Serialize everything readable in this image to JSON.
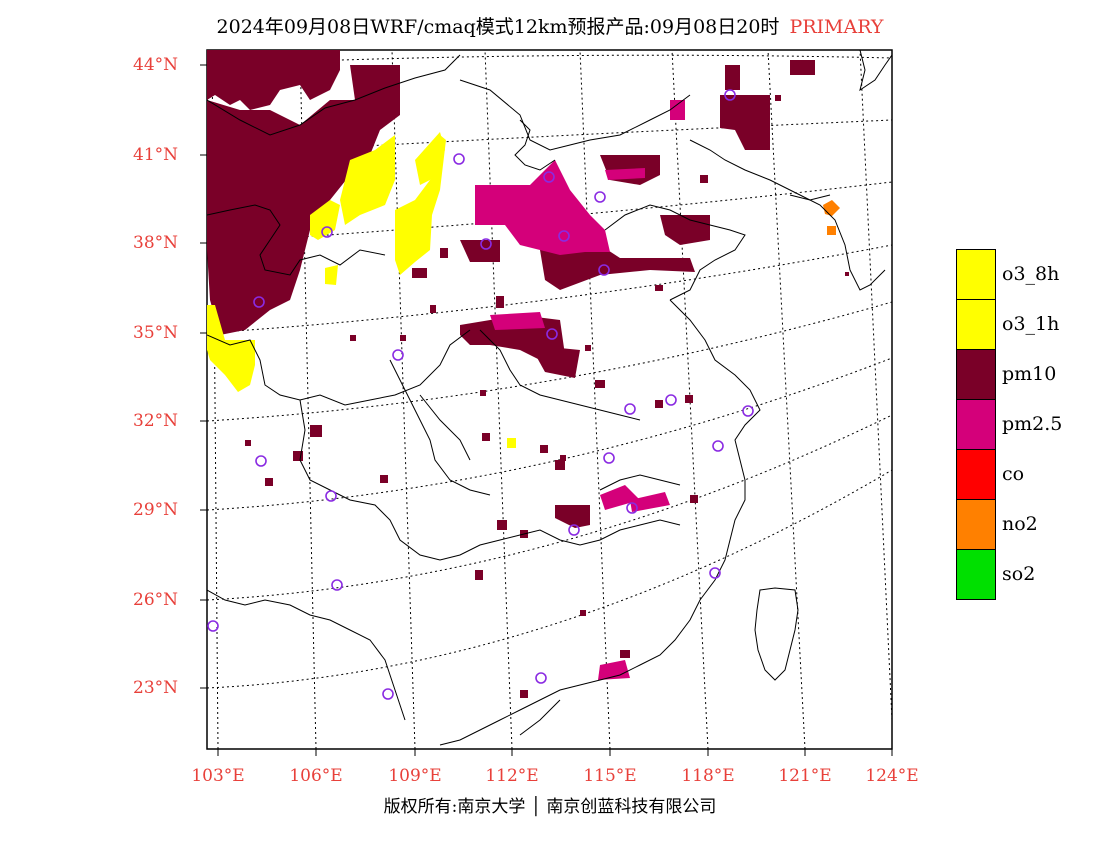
{
  "title": {
    "main": "2024年09月08日WRF/cmaq模式12km预报产品:09月08日20时",
    "tag": "PRIMARY"
  },
  "axes": {
    "lat_labels": [
      "44°N",
      "41°N",
      "38°N",
      "35°N",
      "32°N",
      "29°N",
      "26°N",
      "23°N"
    ],
    "lon_labels": [
      "103°E",
      "106°E",
      "109°E",
      "112°E",
      "115°E",
      "118°E",
      "121°E",
      "124°E"
    ]
  },
  "legend": [
    {
      "label": "o3_8h",
      "color": "#ffff00"
    },
    {
      "label": "o3_1h",
      "color": "#ffff00"
    },
    {
      "label": "pm10",
      "color": "#7a0028"
    },
    {
      "label": "pm2.5",
      "color": "#d4007a"
    },
    {
      "label": "co",
      "color": "#ff0000"
    },
    {
      "label": "no2",
      "color": "#ff8000"
    },
    {
      "label": "so2",
      "color": "#00e000"
    }
  ],
  "copyright": {
    "left": "版权所有:南京大学",
    "right": "南京创蓝科技有限公司"
  },
  "colors": {
    "label_red": "#e8403a",
    "station_marker": "#8a2be2"
  }
}
